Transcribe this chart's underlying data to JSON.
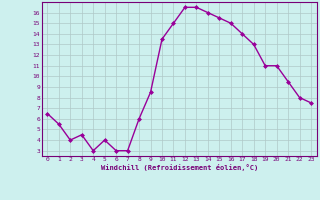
{
  "x": [
    0,
    1,
    2,
    3,
    4,
    5,
    6,
    7,
    8,
    9,
    10,
    11,
    12,
    13,
    14,
    15,
    16,
    17,
    18,
    19,
    20,
    21,
    22,
    23
  ],
  "y": [
    6.5,
    5.5,
    4.0,
    4.5,
    3.0,
    4.0,
    3.0,
    3.0,
    6.0,
    8.5,
    13.5,
    15.0,
    16.5,
    16.5,
    16.0,
    15.5,
    15.0,
    14.0,
    13.0,
    11.0,
    11.0,
    9.5,
    8.0,
    7.5
  ],
  "line_color": "#990099",
  "marker": "D",
  "marker_size": 2.0,
  "xlabel": "Windchill (Refroidissement éolien,°C)",
  "xlim": [
    -0.5,
    23.5
  ],
  "ylim": [
    2.5,
    17.0
  ],
  "yticks": [
    3,
    4,
    5,
    6,
    7,
    8,
    9,
    10,
    11,
    12,
    13,
    14,
    15,
    16
  ],
  "xticks": [
    0,
    1,
    2,
    3,
    4,
    5,
    6,
    7,
    8,
    9,
    10,
    11,
    12,
    13,
    14,
    15,
    16,
    17,
    18,
    19,
    20,
    21,
    22,
    23
  ],
  "bg_color": "#cdf0ee",
  "grid_color": "#b0c8c8",
  "font_color": "#770077",
  "line_width": 1.0
}
